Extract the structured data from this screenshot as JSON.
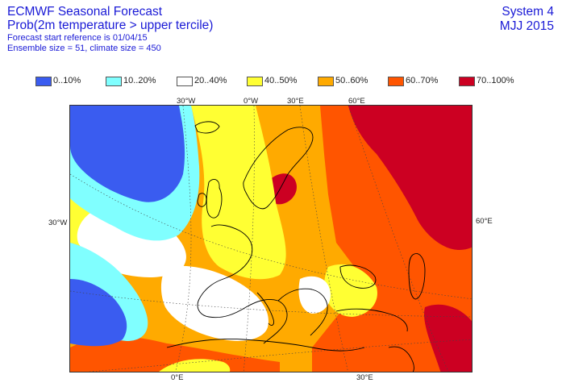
{
  "header": {
    "title": "ECMWF Seasonal Forecast",
    "subtitle": "Prob(2m temperature > upper tercile)",
    "start_ref": "Forecast start reference is 01/04/15",
    "ensemble": "Ensemble size = 51, climate size = 450",
    "system": "System 4",
    "season": "MJJ 2015"
  },
  "legend": [
    {
      "label": "0..10%",
      "color": "#3a5cf0"
    },
    {
      "label": "10..20%",
      "color": "#80ffff"
    },
    {
      "label": "20..40%",
      "color": "#ffffff"
    },
    {
      "label": "40..50%",
      "color": "#ffff33"
    },
    {
      "label": "50..60%",
      "color": "#ffaa00"
    },
    {
      "label": "60..70%",
      "color": "#ff5500"
    },
    {
      "label": "70..100%",
      "color": "#cc0022"
    }
  ],
  "axis_labels": {
    "top": [
      "30°W",
      "0°W",
      "30°E",
      "60°E"
    ],
    "left": "30°W",
    "right": "60°E",
    "bottom": [
      "0°E",
      "30°E"
    ]
  },
  "colors": {
    "text": "#1a1ad6",
    "coast": "#000000",
    "grid": "#444444"
  }
}
